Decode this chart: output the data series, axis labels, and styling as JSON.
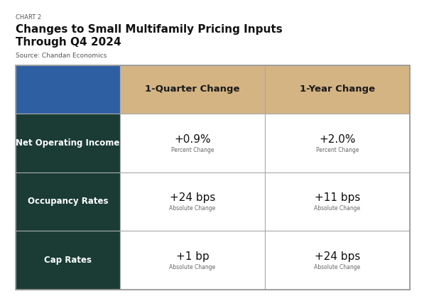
{
  "chart_label": "CHART 2",
  "title_line1": "Changes to Small Multifamily Pricing Inputs",
  "title_line2": "Through Q4 2024",
  "source": "Source: Chandan Economics",
  "col_headers": [
    "1-Quarter Change",
    "1-Year Change"
  ],
  "row_labels": [
    "Net Operating Income",
    "Occupancy Rates",
    "Cap Rates"
  ],
  "values": [
    [
      "+0.9%",
      "+2.0%"
    ],
    [
      "+24 bps",
      "+11 bps"
    ],
    [
      "+1 bp",
      "+24 bps"
    ]
  ],
  "subtext": [
    [
      "Percent Change",
      "Percent Change"
    ],
    [
      "Absolute Change",
      "Absolute Change"
    ],
    [
      "Absolute Change",
      "Absolute Change"
    ]
  ],
  "header_bg_color": "#D4B483",
  "row_label_bg_color": "#1A3C34",
  "row_label_top_color": "#2E5FA3",
  "row_label_text_color": "#FFFFFF",
  "cell_bg_color": "#FFFFFF",
  "grid_line_color": "#AAAAAA",
  "outer_border_color": "#999999",
  "value_fontsize": 11,
  "subtext_fontsize": 5.5,
  "header_fontsize": 9.5,
  "row_label_fontsize": 8.5,
  "chart_label_fontsize": 6,
  "title_fontsize": 11,
  "source_fontsize": 6.5,
  "background_color": "#FFFFFF"
}
